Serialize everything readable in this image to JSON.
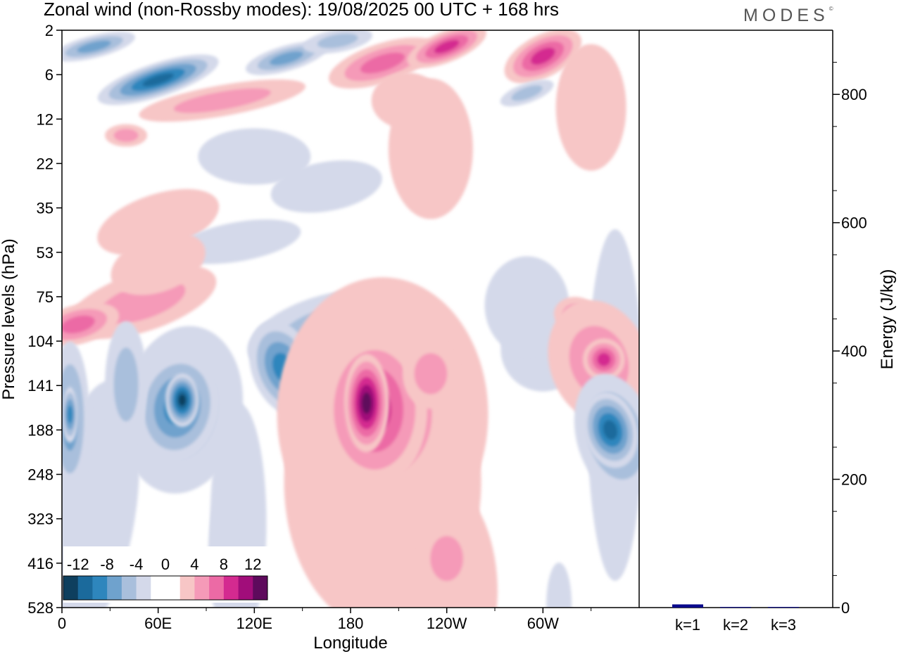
{
  "title": "Zonal wind (non-Rossby modes):  19/08/2025  00 UTC  + 168 hrs",
  "brand": "MODES",
  "brand_mark": "©",
  "chart_data": [
    {
      "type": "heatmap",
      "title": "Zonal wind (non-Rossby modes):  19/08/2025  00 UTC  + 168 hrs",
      "xlabel": "Longitude",
      "ylabel": "Pressure levels (hPa)",
      "xticks": [
        "0",
        "60E",
        "120E",
        "180",
        "120W",
        "60W"
      ],
      "xtick_degrees": [
        0,
        60,
        120,
        180,
        240,
        300
      ],
      "xlim": [
        0,
        360
      ],
      "yticks": [
        "2",
        "6",
        "12",
        "22",
        "35",
        "53",
        "75",
        "104",
        "141",
        "188",
        "248",
        "323",
        "416",
        "528"
      ],
      "colorbar_labels": [
        "-12",
        "-8",
        "-4",
        "0",
        "4",
        "8",
        "12"
      ],
      "colorbar_colors": [
        "#0e3f5e",
        "#1b6a9c",
        "#2e86bd",
        "#6fa2cd",
        "#a9bfdc",
        "#d4d9ea",
        "#ffffff",
        "#ffffff",
        "#f7c6c6",
        "#f59ab8",
        "#ec6aa5",
        "#d42a90",
        "#a10d7a",
        "#5e0a5c"
      ],
      "features": [
        {
          "lon": 240,
          "pressure": 2,
          "value": 12,
          "sign": "pos"
        },
        {
          "lon": 300,
          "pressure": 4,
          "value": 12,
          "sign": "pos"
        },
        {
          "lon": 190,
          "pressure": 5,
          "value": 10,
          "sign": "pos"
        },
        {
          "lon": 50,
          "pressure": 7,
          "value": -12,
          "sign": "neg"
        },
        {
          "lon": 170,
          "pressure": 3,
          "value": -8,
          "sign": "neg"
        },
        {
          "lon": 10,
          "pressure": 90,
          "value": 10,
          "sign": "pos"
        },
        {
          "lon": 140,
          "pressure": 120,
          "value": -10,
          "sign": "neg"
        },
        {
          "lon": 190,
          "pressure": 160,
          "value": 16,
          "sign": "pos"
        },
        {
          "lon": 75,
          "pressure": 160,
          "value": -16,
          "sign": "neg"
        },
        {
          "lon": 5,
          "pressure": 175,
          "value": -10,
          "sign": "neg"
        },
        {
          "lon": 340,
          "pressure": 190,
          "value": -12,
          "sign": "neg"
        },
        {
          "lon": 340,
          "pressure": 115,
          "value": 8,
          "sign": "pos"
        },
        {
          "lon": 245,
          "pressure": 400,
          "value": 6,
          "sign": "pos"
        }
      ]
    },
    {
      "type": "bar",
      "categories": [
        "k=1",
        "k=2",
        "k=3"
      ],
      "values": [
        5,
        1,
        1
      ],
      "ylabel": "Energy (J/kg)",
      "ylim": [
        0,
        900
      ],
      "yticks": [
        "0",
        "200",
        "400",
        "600",
        "800"
      ],
      "ytick_values": [
        0,
        200,
        400,
        600,
        800
      ],
      "colors": [
        "#0a0a8c",
        "#0a0a8c",
        "#0a0a8c"
      ]
    }
  ]
}
